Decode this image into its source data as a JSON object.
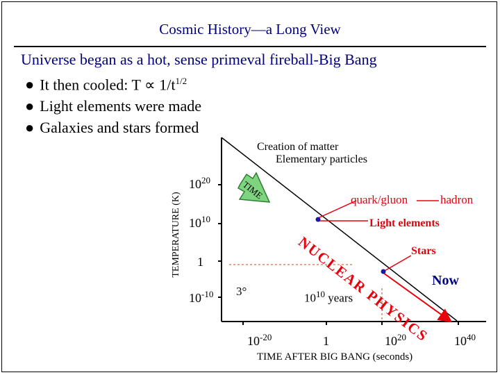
{
  "title": "Cosmic History—a Long View",
  "headline": "Universe began as a hot, sense primeval fireball-Big Bang",
  "bullets": [
    {
      "pre": "It then cooled: T ",
      "symbol": "∝",
      "post": " 1/t",
      "sup": "1/2"
    },
    {
      "pre": "Light elements were made",
      "symbol": "",
      "post": "",
      "sup": ""
    },
    {
      "pre": "Galaxies and stars formed",
      "symbol": "",
      "post": "",
      "sup": ""
    }
  ],
  "diagram": {
    "y_axis_title": "TEMPERATURE (K)",
    "x_axis_title": "TIME AFTER BIG BANG (seconds)",
    "y_ticks": [
      {
        "base": "10",
        "exp": "20"
      },
      {
        "base": "10",
        "exp": "10"
      },
      {
        "base": "1",
        "exp": ""
      },
      {
        "base": "10",
        "exp": "-10"
      }
    ],
    "x_ticks": [
      {
        "base": "10",
        "exp": "-20"
      },
      {
        "base": "1",
        "exp": ""
      },
      {
        "base": "10",
        "exp": "20"
      },
      {
        "base": "10",
        "exp": "40"
      }
    ],
    "annotations": {
      "creation_line1": "Creation of matter",
      "creation_line2": "Elementary particles",
      "time_arrow": "TIME",
      "quark_gluon": "quark/gluon",
      "hadron": "hadron",
      "light_elements": "Light elements",
      "stars": "Stars",
      "now": "Now",
      "cmb_temp": "3°",
      "years_base": "10",
      "years_exp": "10",
      "years_unit": " years",
      "nuclear_physics": "NUCLEAR PHYSICS"
    },
    "colors": {
      "title": "#000080",
      "accent_red": "#e8000d",
      "marker_blue": "#1a1aa0",
      "time_arrow": "#7fd47f",
      "dashed_guide": "#b5532a"
    }
  }
}
